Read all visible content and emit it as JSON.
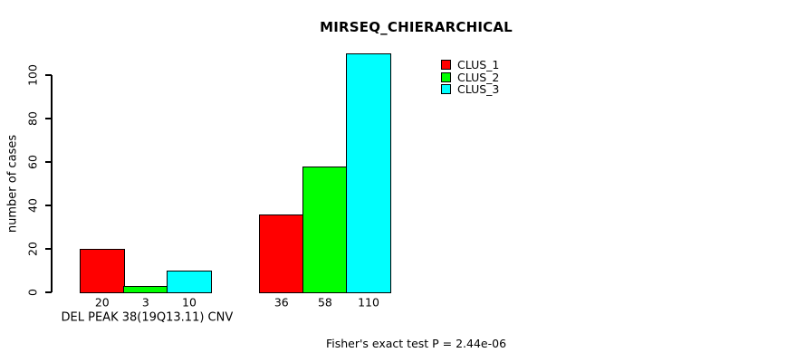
{
  "title": "MIRSEQ_CHIERARCHICAL",
  "footer": "Fisher's exact test P = 2.44e-06",
  "chart_data": {
    "type": "bar",
    "title": "MIRSEQ_CHIERARCHICAL",
    "xlabel": "DEL PEAK 38(19Q13.11) CNV",
    "ylabel": "number of cases",
    "ylim": [
      0,
      100
    ],
    "yticks": [
      0,
      20,
      40,
      60,
      80,
      100
    ],
    "grid": false,
    "legend_position": "top-right",
    "series": [
      {
        "name": "CLUS_1",
        "color": "#ff0000"
      },
      {
        "name": "CLUS_2",
        "color": "#00ff00"
      },
      {
        "name": "CLUS_3",
        "color": "#00ffff"
      }
    ],
    "groups": [
      {
        "label": "DEL PEAK 38(19Q13.11) CNV",
        "values": [
          20,
          3,
          10
        ]
      },
      {
        "label": "",
        "values": [
          36,
          58,
          110
        ]
      }
    ],
    "bar_value_labels": [
      "20",
      "3",
      "10",
      "36",
      "58",
      "110"
    ],
    "annotation": "Fisher's exact test P = 2.44e-06"
  }
}
